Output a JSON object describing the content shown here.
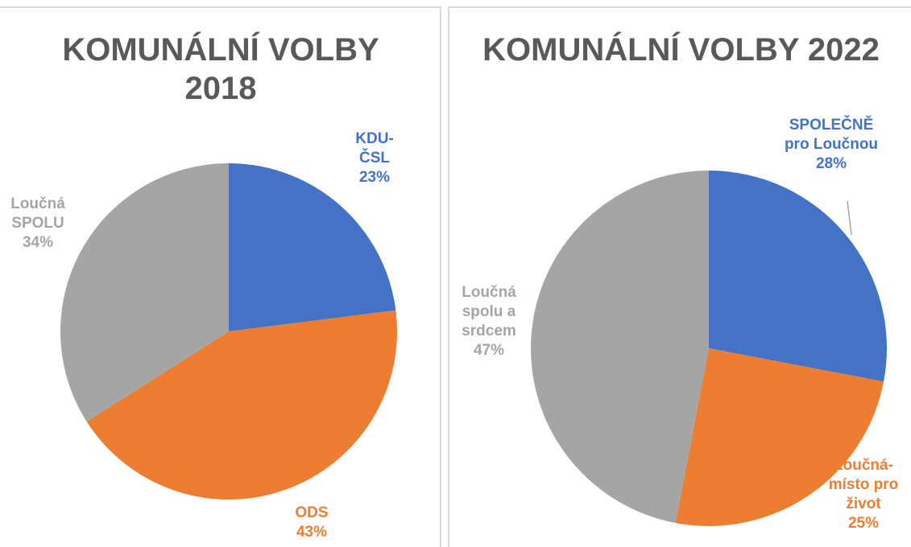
{
  "chart_data": [
    {
      "type": "pie",
      "title": "KOMUNÁLNÍ VOLBY 2018",
      "categories": [
        "KDU-ČSL",
        "ODS",
        "Loučná SPOLU"
      ],
      "values": [
        23,
        43,
        34
      ],
      "value_labels": [
        "23%",
        "43%",
        "34%"
      ],
      "colors": [
        "#4472c4",
        "#ed7d31",
        "#a5a5a5"
      ]
    },
    {
      "type": "pie",
      "title": "KOMUNÁLNÍ VOLBY 2022",
      "categories": [
        "SPOLEČNĚ pro Loučnou",
        "Loučná-místo pro život",
        "Loučná spolu a srdcem"
      ],
      "values": [
        28,
        25,
        47
      ],
      "value_labels": [
        "28%",
        "25%",
        "47%"
      ],
      "colors": [
        "#4472c4",
        "#ed7d31",
        "#a5a5a5"
      ]
    }
  ]
}
